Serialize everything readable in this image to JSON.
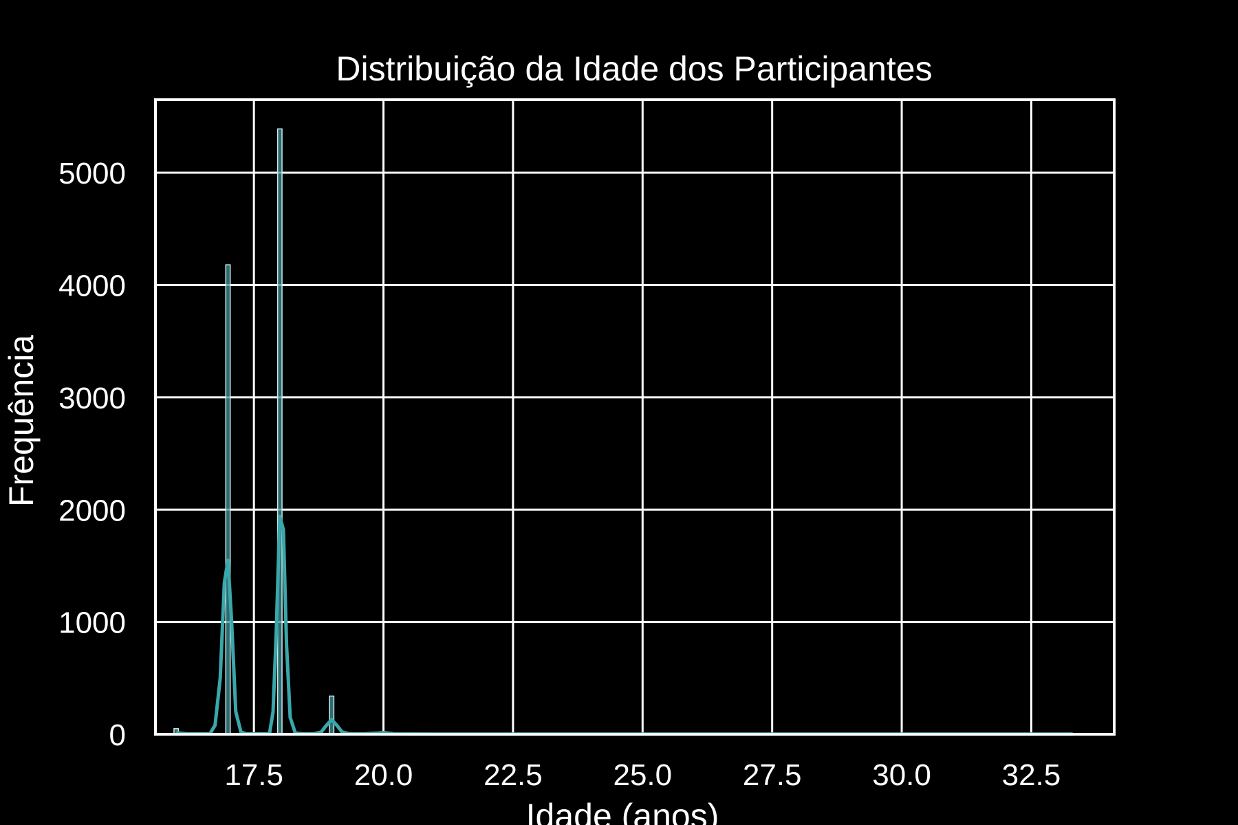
{
  "chart_data": {
    "type": "bar",
    "title": "Distribuição da Idade dos Participantes",
    "xlabel": "Idade (anos)",
    "ylabel": "Frequência",
    "xlim": [
      15.6,
      34.1
    ],
    "ylim": [
      0,
      5650
    ],
    "x_ticks": [
      17.5,
      20.0,
      22.5,
      25.0,
      27.5,
      30.0,
      32.5
    ],
    "x_tick_labels": [
      "17.5",
      "20.0",
      "22.5",
      "25.0",
      "27.5",
      "30.0",
      "32.5"
    ],
    "y_ticks": [
      0,
      1000,
      2000,
      3000,
      4000,
      5000
    ],
    "y_tick_labels": [
      "0",
      "1000",
      "2000",
      "3000",
      "4000",
      "5000"
    ],
    "grid": true,
    "colors": {
      "background": "#000000",
      "bar_fill": "#3b8f94",
      "bar_edge": "#cde8ea",
      "kde_line": "#3aa7aa",
      "text": "#ffffff",
      "grid": "#ffffff"
    },
    "histogram": {
      "bin_width": 0.085,
      "bins": [
        {
          "x": 16.0,
          "count": 50
        },
        {
          "x": 17.0,
          "count": 4180
        },
        {
          "x": 18.0,
          "count": 5390
        },
        {
          "x": 19.0,
          "count": 340
        },
        {
          "x": 20.0,
          "count": 10
        },
        {
          "x": 33.0,
          "count": 3
        }
      ]
    },
    "kde": {
      "x": [
        16.0,
        16.1,
        16.25,
        16.45,
        16.65,
        16.75,
        16.85,
        16.93,
        17.0,
        17.07,
        17.15,
        17.25,
        17.35,
        17.55,
        17.8,
        17.87,
        17.93,
        18.0,
        18.07,
        18.13,
        18.2,
        18.3,
        18.45,
        18.65,
        18.8,
        18.9,
        19.0,
        19.1,
        19.2,
        19.35,
        19.6,
        19.9,
        20.0,
        20.2,
        21.0,
        25.0,
        30.0,
        33.0,
        33.3
      ],
      "y": [
        15,
        8,
        3,
        3,
        3,
        80,
        500,
        1350,
        1550,
        1000,
        200,
        20,
        3,
        3,
        3,
        200,
        900,
        1940,
        1820,
        800,
        150,
        10,
        3,
        3,
        20,
        80,
        130,
        80,
        20,
        3,
        3,
        10,
        15,
        3,
        2,
        2,
        2,
        2,
        2
      ]
    }
  }
}
